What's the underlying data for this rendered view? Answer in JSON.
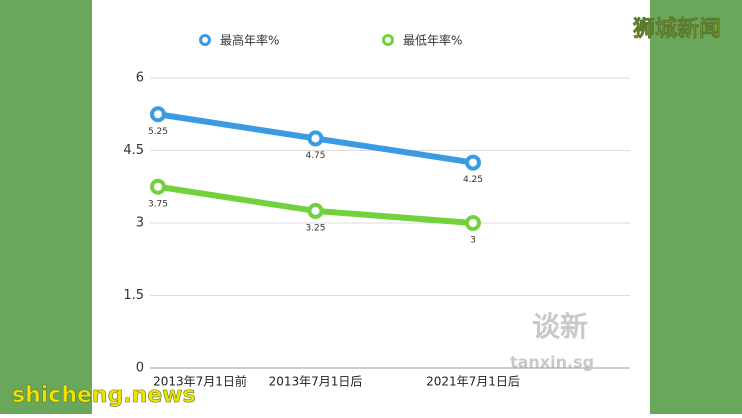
{
  "chart_data": {
    "type": "line",
    "categories": [
      "2013年7月1日前",
      "2013年7月1日后",
      "2021年7月1日后"
    ],
    "series": [
      {
        "name": "最高年率%",
        "color": "#3a9be3",
        "values": [
          5.25,
          4.75,
          4.25
        ]
      },
      {
        "name": "最低年率%",
        "color": "#72d23e",
        "values": [
          3.75,
          3.25,
          3
        ]
      }
    ],
    "ylim": [
      0,
      6
    ],
    "yticks": [
      0,
      1.5,
      3,
      4.5,
      6
    ],
    "grid": true,
    "annotations": [
      "谈新",
      "tanxin.sg",
      "狮城新闻",
      "shicheng.news"
    ]
  }
}
